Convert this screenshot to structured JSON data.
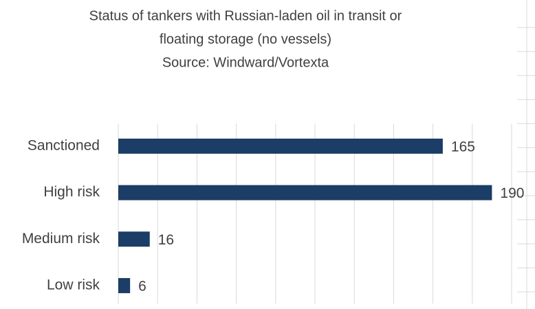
{
  "chart_data": {
    "type": "bar",
    "orientation": "horizontal",
    "title": [
      "Status of tankers with Russian-laden oil in transit or",
      "floating storage (no vessels)",
      "Source: Windward/Vortexta"
    ],
    "categories": [
      "Sanctioned",
      "High risk",
      "Medium risk",
      "Low risk"
    ],
    "values": [
      165,
      190,
      16,
      6
    ],
    "color": "#1b3d66",
    "xlim": [
      0,
      200
    ],
    "xticks": [
      0,
      20,
      40,
      60,
      80,
      100,
      120,
      140,
      160,
      180,
      200
    ],
    "grid": true
  }
}
